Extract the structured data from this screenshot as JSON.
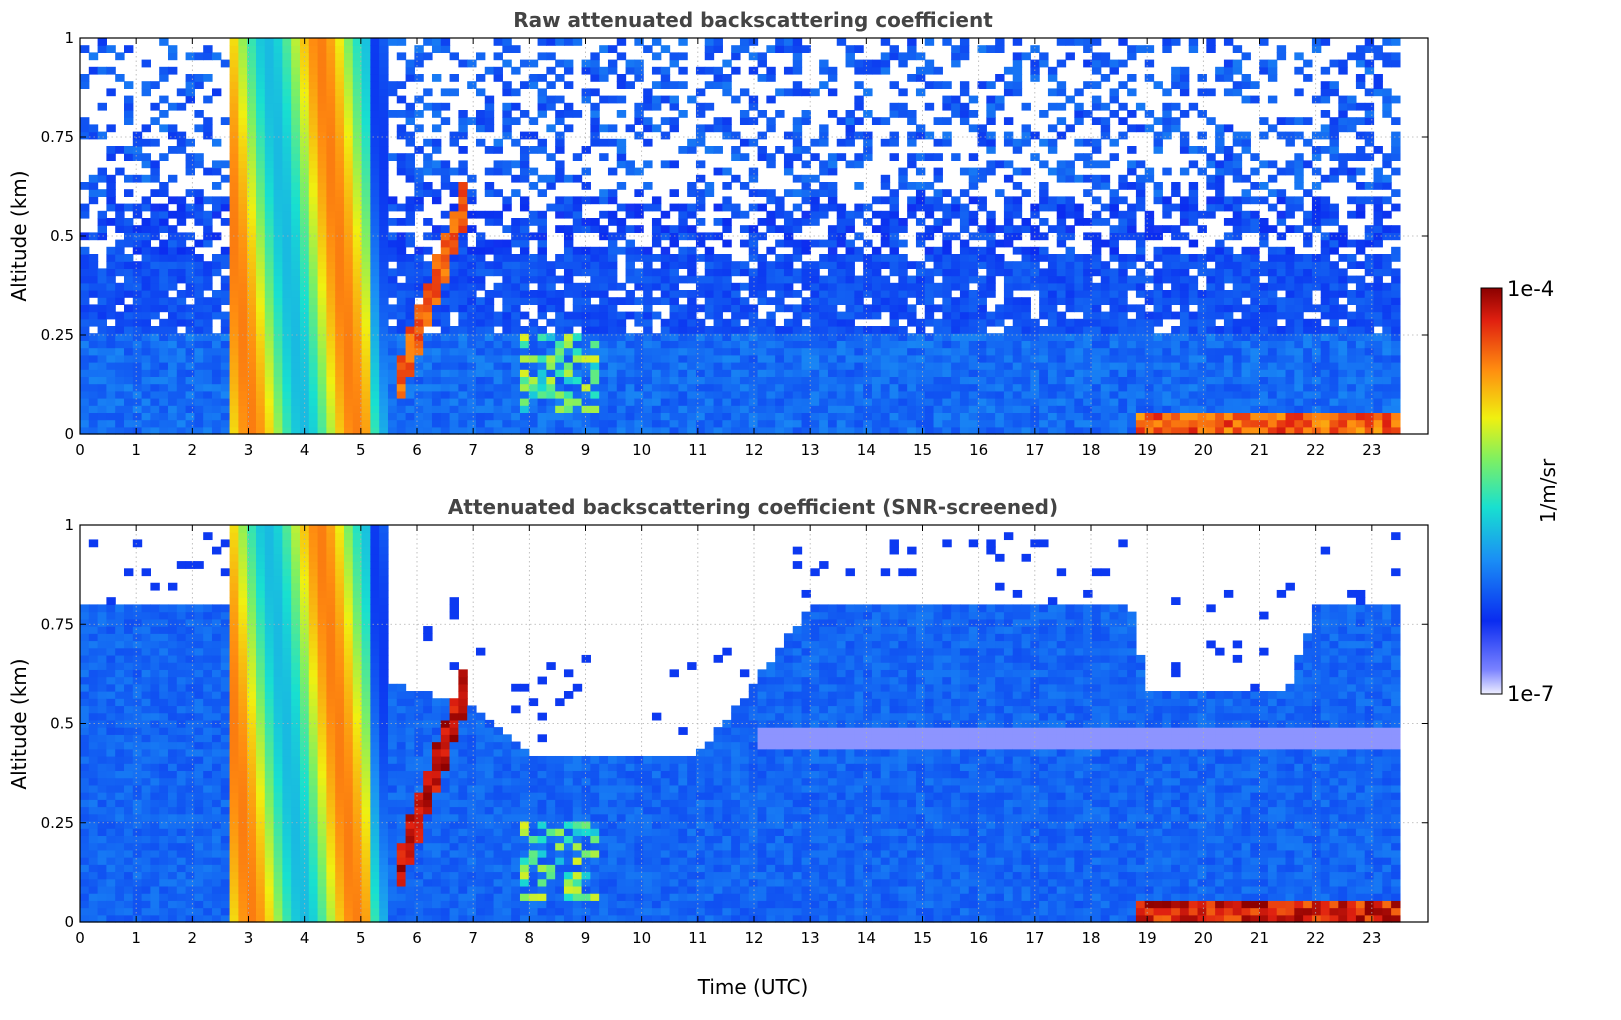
{
  "figure": {
    "colorbar": {
      "max_label": "1e-4",
      "min_label": "1e-7",
      "unit_label": "1/m/sr"
    }
  },
  "colors": {
    "lowest": "#eeeeff",
    "low": "#0a2cf0",
    "mid": "#18e0d0",
    "high": "#f0f010",
    "peak": "#e02010",
    "max": "#8b0000"
  },
  "chart_data": [
    {
      "type": "heatmap",
      "title": "Raw attenuated backscattering coefficient",
      "xlabel": "",
      "ylabel": "Altitude (km)",
      "xlim": [
        0,
        24
      ],
      "ylim": [
        0,
        1
      ],
      "xticks": [
        0,
        1,
        2,
        3,
        4,
        5,
        6,
        7,
        8,
        9,
        10,
        11,
        12,
        13,
        14,
        15,
        16,
        17,
        18,
        19,
        20,
        21,
        22,
        23
      ],
      "yticks": [
        0,
        0.25,
        0.5,
        0.75,
        1
      ],
      "ytick_labels": [
        "0",
        "0.25",
        "0.5",
        "0.75",
        "1"
      ],
      "grid": true,
      "colorscale": {
        "min": 1e-07,
        "max": 0.0001,
        "log": true,
        "unit": "1/m/sr"
      },
      "data_end_hour": 23.5,
      "features": [
        {
          "kind": "precipitation",
          "start_hour": 2.6,
          "end_hour": 5.5,
          "value_log": -4.6
        },
        {
          "kind": "cloud",
          "start_hour": 5.6,
          "end_hour": 6.9,
          "base_km": 0.1,
          "top_km": 0.6,
          "value_log": -4.3
        },
        {
          "kind": "aerosol_layer",
          "start_hour": 7.8,
          "end_hour": 9.2,
          "base_km": 0.05,
          "top_km": 0.25,
          "value_log": -5.0
        },
        {
          "kind": "surface_layer",
          "start_hour": 18.8,
          "end_hour": 23.5,
          "base_km": 0.0,
          "top_km": 0.06,
          "value_log": -4.2
        }
      ]
    },
    {
      "type": "heatmap",
      "title": "Attenuated backscattering coefficient (SNR-screened)",
      "xlabel": "Time (UTC)",
      "ylabel": "Altitude (km)",
      "xlim": [
        0,
        24
      ],
      "ylim": [
        0,
        1
      ],
      "xticks": [
        0,
        1,
        2,
        3,
        4,
        5,
        6,
        7,
        8,
        9,
        10,
        11,
        12,
        13,
        14,
        15,
        16,
        17,
        18,
        19,
        20,
        21,
        22,
        23
      ],
      "yticks": [
        0,
        0.25,
        0.5,
        0.75,
        1
      ],
      "ytick_labels": [
        "0",
        "0.25",
        "0.5",
        "0.75",
        "1"
      ],
      "grid": true,
      "colorscale": {
        "min": 1e-07,
        "max": 0.0001,
        "log": true,
        "unit": "1/m/sr"
      },
      "data_end_hour": 23.5,
      "features": [
        {
          "kind": "precipitation",
          "start_hour": 2.6,
          "end_hour": 5.5,
          "value_log": -4.6
        },
        {
          "kind": "cloud",
          "start_hour": 5.6,
          "end_hour": 6.9,
          "base_km": 0.1,
          "top_km": 0.6,
          "value_log": -4.0
        },
        {
          "kind": "aerosol_layer",
          "start_hour": 7.8,
          "end_hour": 9.2,
          "base_km": 0.05,
          "top_km": 0.25,
          "value_log": -5.0
        },
        {
          "kind": "surface_layer",
          "start_hour": 18.8,
          "end_hour": 23.5,
          "base_km": 0.0,
          "top_km": 0.06,
          "value_log": -4.0
        }
      ],
      "boundary_layer_top_km": [
        {
          "hour": 0,
          "km": 0.8
        },
        {
          "hour": 2.5,
          "km": 0.8
        },
        {
          "hour": 5.5,
          "km": 0.6
        },
        {
          "hour": 7,
          "km": 0.55
        },
        {
          "hour": 8,
          "km": 0.42
        },
        {
          "hour": 11,
          "km": 0.42
        },
        {
          "hour": 12,
          "km": 0.6
        },
        {
          "hour": 13,
          "km": 0.8
        },
        {
          "hour": 18.7,
          "km": 0.8
        },
        {
          "hour": 19,
          "km": 0.58
        },
        {
          "hour": 21.5,
          "km": 0.58
        },
        {
          "hour": 22,
          "km": 0.8
        },
        {
          "hour": 23.5,
          "km": 0.8
        }
      ]
    }
  ]
}
